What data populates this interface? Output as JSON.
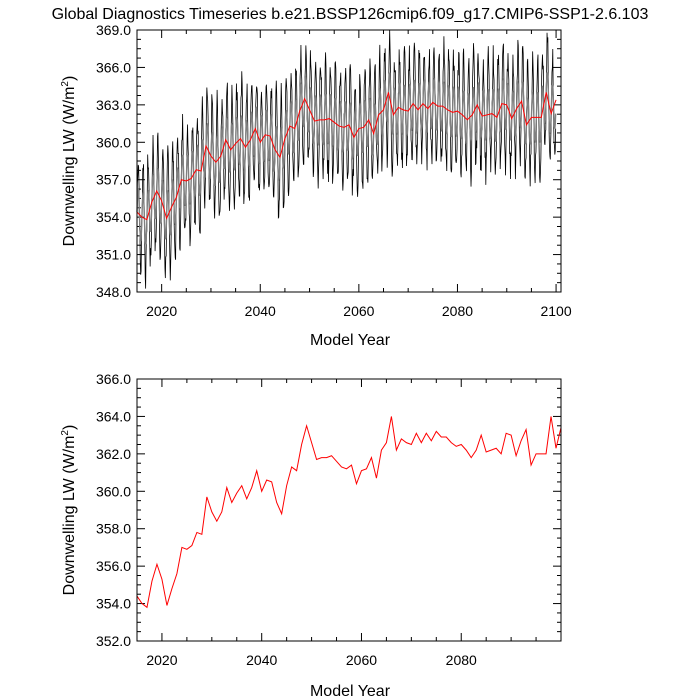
{
  "title": "Global Diagnostics Timeseries b.e21.BSSP126cmip6.f09_g17.CMIP6-SSP1-2.6.103",
  "colors": {
    "annual": "#ff0000",
    "monthly": "#000000",
    "monthly_band": "#808080"
  },
  "chart_data": [
    {
      "type": "line",
      "title": "Global Diagnostics Timeseries b.e21.BSSP126cmip6.f09_g17.CMIP6-SSP1-2.6.103",
      "xlabel": "Model Year",
      "ylabel": "Downwelling LW (W/m²)",
      "xlim": [
        2015,
        2101
      ],
      "ylim": [
        348.0,
        369.0
      ],
      "xticks": [
        2020,
        2040,
        2060,
        2080,
        2100
      ],
      "yticks": [
        348.0,
        351.0,
        354.0,
        357.0,
        360.0,
        363.0,
        366.0,
        369.0
      ],
      "xtick_labels": [
        "2020",
        "2040",
        "2060",
        "2080",
        "2100"
      ],
      "ytick_labels": [
        "348.0",
        "351.0",
        "354.0",
        "357.0",
        "360.0",
        "363.0",
        "366.0",
        "369.0"
      ],
      "series": [
        {
          "style": "monthly (black, seasonal cycle)",
          "amplitude": 4.5,
          "noise": 1.2
        },
        {
          "style": "annual mean (red)",
          "source": "annual_mean"
        }
      ]
    },
    {
      "type": "line",
      "xlabel": "Model Year",
      "ylabel": "Downwelling LW (W/m²)",
      "xlim": [
        2015,
        2100
      ],
      "ylim": [
        352.0,
        366.0
      ],
      "xticks": [
        2020,
        2040,
        2060,
        2080
      ],
      "yticks": [
        352.0,
        354.0,
        356.0,
        358.0,
        360.0,
        362.0,
        364.0,
        366.0
      ],
      "xtick_labels": [
        "2020",
        "2040",
        "2060",
        "2080"
      ],
      "ytick_labels": [
        "352.0",
        "354.0",
        "356.0",
        "358.0",
        "360.0",
        "362.0",
        "364.0",
        "366.0"
      ],
      "series": [
        {
          "style": "annual mean (red)",
          "source": "annual_mean"
        }
      ]
    }
  ],
  "annual_mean": {
    "x": [
      2015,
      2016,
      2017,
      2018,
      2019,
      2020,
      2021,
      2022,
      2023,
      2024,
      2025,
      2026,
      2027,
      2028,
      2029,
      2030,
      2031,
      2032,
      2033,
      2034,
      2035,
      2036,
      2037,
      2038,
      2039,
      2040,
      2041,
      2042,
      2043,
      2044,
      2045,
      2046,
      2047,
      2048,
      2049,
      2050,
      2051,
      2052,
      2053,
      2054,
      2055,
      2056,
      2057,
      2058,
      2059,
      2060,
      2061,
      2062,
      2063,
      2064,
      2065,
      2066,
      2067,
      2068,
      2069,
      2070,
      2071,
      2072,
      2073,
      2074,
      2075,
      2076,
      2077,
      2078,
      2079,
      2080,
      2081,
      2082,
      2083,
      2084,
      2085,
      2086,
      2087,
      2088,
      2089,
      2090,
      2091,
      2092,
      2093,
      2094,
      2095,
      2096,
      2097,
      2098,
      2099,
      2100
    ],
    "y": [
      354.4,
      354.0,
      353.8,
      355.2,
      356.1,
      355.3,
      353.9,
      354.8,
      355.6,
      357.0,
      356.9,
      357.1,
      357.8,
      357.7,
      359.7,
      358.9,
      358.4,
      358.9,
      360.2,
      359.4,
      359.9,
      360.3,
      359.6,
      360.2,
      361.1,
      360.0,
      360.6,
      360.5,
      359.4,
      358.8,
      360.3,
      361.3,
      361.1,
      362.5,
      363.5,
      362.6,
      361.7,
      361.8,
      361.8,
      361.9,
      361.6,
      361.3,
      361.2,
      361.4,
      360.4,
      361.1,
      361.2,
      361.8,
      360.7,
      362.2,
      362.6,
      364.0,
      362.2,
      362.8,
      362.6,
      362.5,
      363.1,
      362.6,
      363.1,
      362.7,
      363.2,
      362.9,
      362.9,
      362.6,
      362.4,
      362.5,
      362.2,
      361.8,
      362.2,
      363.0,
      362.1,
      362.2,
      362.3,
      362.0,
      363.1,
      363.0,
      361.9,
      362.7,
      363.3,
      361.4,
      362.0,
      362.0,
      362.0,
      364.0,
      362.3,
      363.4
    ]
  }
}
